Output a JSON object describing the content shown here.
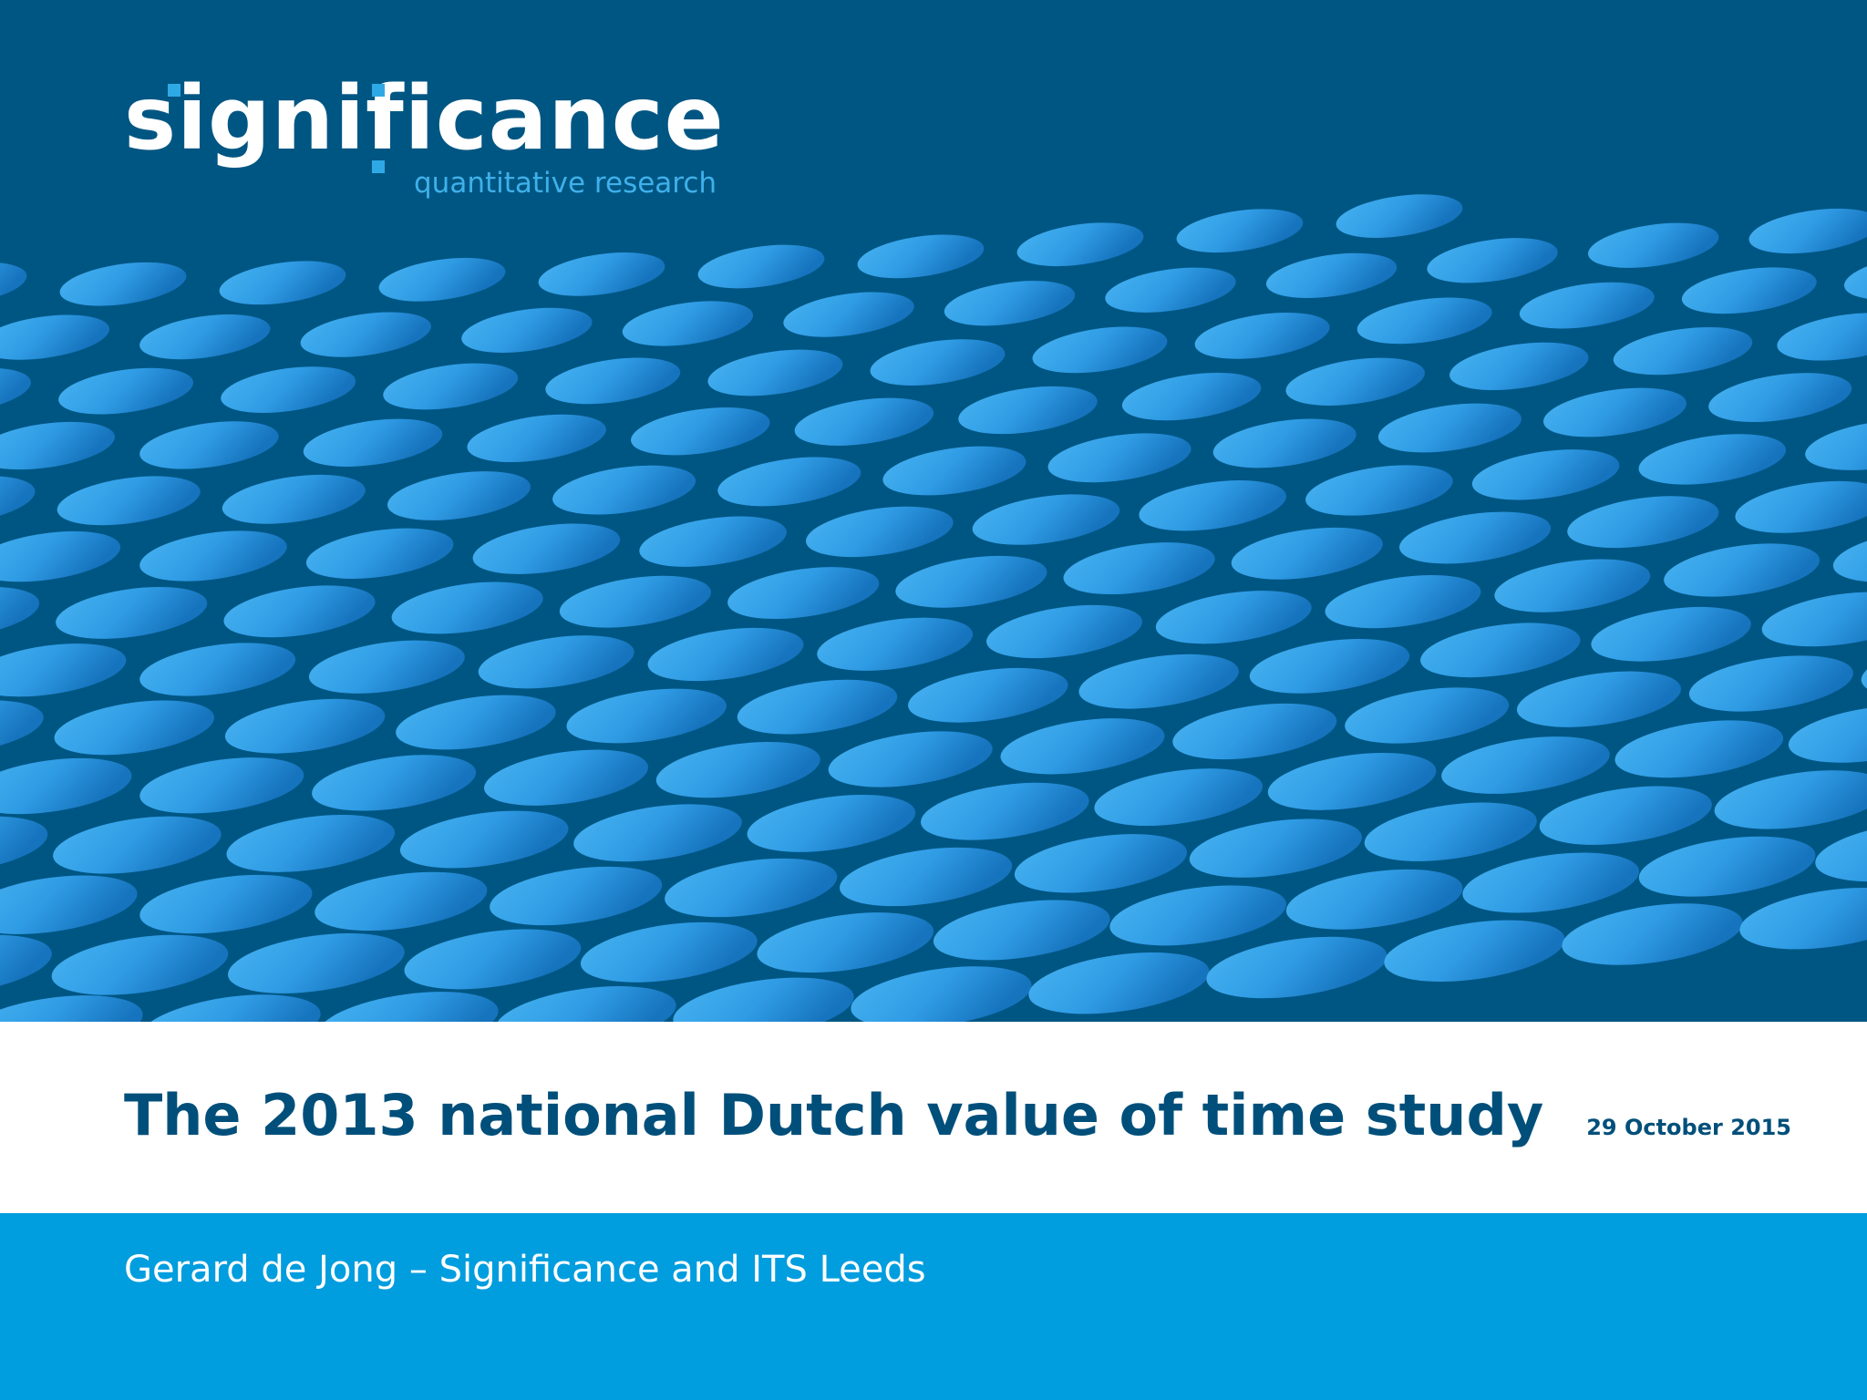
{
  "logo": {
    "wordmark": "significance",
    "tagline": "quantitative research"
  },
  "title": "The 2013 national Dutch value of time study",
  "date": "29 October 2015",
  "author": "Gerard de Jong – Significance and ITS Leeds",
  "colors": {
    "hero_background": "#005683",
    "pattern_light": "#3aa8ec",
    "pattern_dark": "#1678c2",
    "title_text": "#004f7a",
    "author_band": "#009ddf",
    "logo_tagline": "#3fb0ea"
  }
}
